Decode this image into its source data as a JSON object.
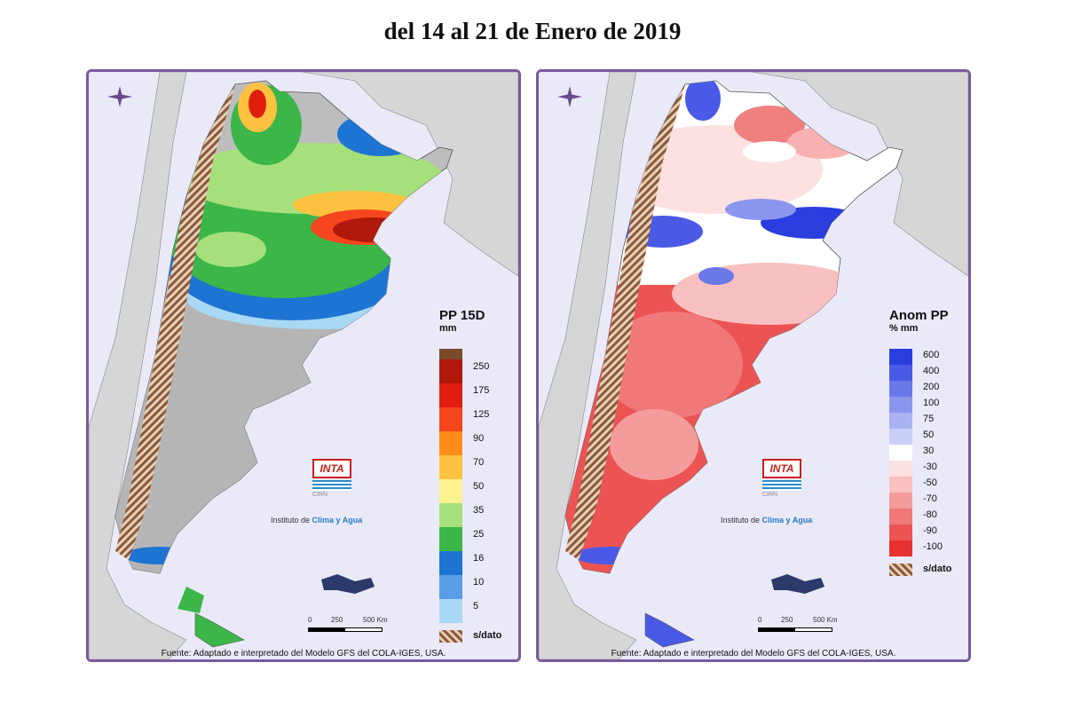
{
  "title": "del 14 al 21 de Enero de 2019",
  "maps": [
    {
      "id": "precipitation",
      "legend_title": "PP 15D",
      "legend_unit": "mm",
      "legend_items": [
        {
          "label": "250",
          "color": "#b0180c"
        },
        {
          "label": "175",
          "color": "#e01e10"
        },
        {
          "label": "125",
          "color": "#f5461e"
        },
        {
          "label": "90",
          "color": "#ff8c1a"
        },
        {
          "label": "70",
          "color": "#ffc240"
        },
        {
          "label": "50",
          "color": "#fff190"
        },
        {
          "label": "35",
          "color": "#a6e07a"
        },
        {
          "label": "25",
          "color": "#3cb648"
        },
        {
          "label": "16",
          "color": "#1e74d2"
        },
        {
          "label": "10",
          "color": "#5a9ee6"
        },
        {
          "label": "5",
          "color": "#a8d8f4"
        }
      ],
      "legend_top_color": "#7a4a2a",
      "nodata_label": "s/dato",
      "logo_text": "INTA",
      "logo_sub": "CIRN",
      "institute_prefix": "Instituto de",
      "institute_name": "Clima y Agua",
      "scale_labels": [
        "0",
        "250",
        "500 Km"
      ],
      "source": "Fuente: Adaptado e interpretado del Modelo GFS del COLA-IGES, USA."
    },
    {
      "id": "anomaly",
      "legend_title": "Anom PP",
      "legend_unit": "% mm",
      "legend_items": [
        {
          "label": "600",
          "color": "#2a3ee0"
        },
        {
          "label": "400",
          "color": "#4a5ae6"
        },
        {
          "label": "200",
          "color": "#6a78ea"
        },
        {
          "label": "100",
          "color": "#8a96ee"
        },
        {
          "label": "75",
          "color": "#aab2f2"
        },
        {
          "label": "50",
          "color": "#c8cef6"
        },
        {
          "label": "30",
          "color": "#ffffff"
        },
        {
          "label": "-30",
          "color": "#fde0e0"
        },
        {
          "label": "-50",
          "color": "#f8c0c0"
        },
        {
          "label": "-70",
          "color": "#f49c9c"
        },
        {
          "label": "-80",
          "color": "#f07878"
        },
        {
          "label": "-90",
          "color": "#ec5454"
        },
        {
          "label": "-100",
          "color": "#e83030"
        }
      ],
      "nodata_label": "s/dato",
      "logo_text": "INTA",
      "logo_sub": "CIRN",
      "institute_prefix": "Instituto de",
      "institute_name": "Clima y Agua",
      "scale_labels": [
        "0",
        "250",
        "500 Km"
      ],
      "source": "Fuente: Adaptado e interpretado del Modelo GFS del COLA-IGES, USA."
    }
  ]
}
